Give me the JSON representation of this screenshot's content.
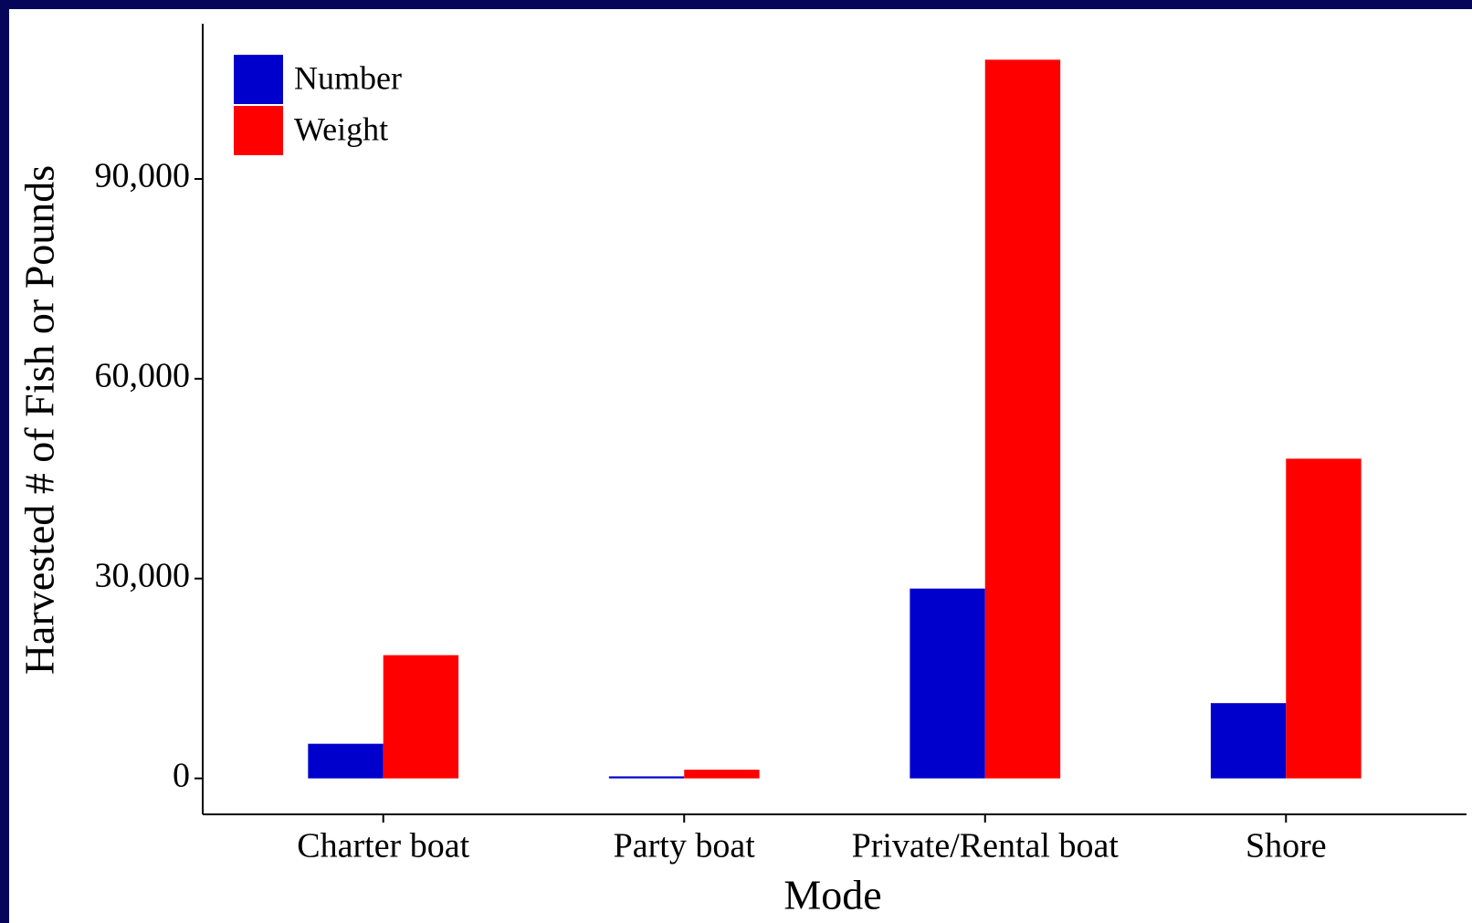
{
  "chart_data": {
    "type": "bar",
    "x_label": "Mode",
    "y_label": "Harvested # of Fish or Pounds",
    "categories": [
      "Charter boat",
      "Party boat",
      "Private/Rental boat",
      "Shore"
    ],
    "series": [
      {
        "name": "Number",
        "color": "#0000cc",
        "values": [
          5200,
          300,
          28500,
          11300
        ]
      },
      {
        "name": "Weight",
        "color": "#ff0000",
        "values": [
          18500,
          1300,
          107900,
          48000
        ]
      }
    ],
    "ylim": [
      -5400,
      113300
    ],
    "yticks": [
      0,
      {
        "value": 30000,
        "label": "30,000"
      },
      {
        "value": 60000,
        "label": "60,000"
      },
      {
        "value": 90000,
        "label": "90,000"
      }
    ],
    "legend": "top-left",
    "grid": false
  }
}
